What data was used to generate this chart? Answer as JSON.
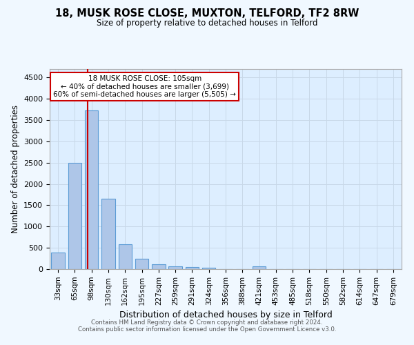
{
  "title": "18, MUSK ROSE CLOSE, MUXTON, TELFORD, TF2 8RW",
  "subtitle": "Size of property relative to detached houses in Telford",
  "xlabel": "Distribution of detached houses by size in Telford",
  "ylabel": "Number of detached properties",
  "categories": [
    "33sqm",
    "65sqm",
    "98sqm",
    "130sqm",
    "162sqm",
    "195sqm",
    "227sqm",
    "259sqm",
    "291sqm",
    "324sqm",
    "356sqm",
    "388sqm",
    "421sqm",
    "453sqm",
    "485sqm",
    "518sqm",
    "550sqm",
    "582sqm",
    "614sqm",
    "647sqm",
    "679sqm"
  ],
  "values": [
    390,
    2500,
    3720,
    1650,
    580,
    245,
    110,
    65,
    45,
    40,
    0,
    0,
    60,
    0,
    0,
    0,
    0,
    0,
    0,
    0,
    0
  ],
  "bar_color": "#aec6e8",
  "bar_edgecolor": "#5b9bd5",
  "redline_x": 2,
  "ylim": [
    0,
    4700
  ],
  "yticks": [
    0,
    500,
    1000,
    1500,
    2000,
    2500,
    3000,
    3500,
    4000,
    4500
  ],
  "annotation_title": "18 MUSK ROSE CLOSE: 105sqm",
  "annotation_line1": "← 40% of detached houses are smaller (3,699)",
  "annotation_line2": "60% of semi-detached houses are larger (5,505) →",
  "annotation_box_color": "#ffffff",
  "annotation_box_edgecolor": "#cc0000",
  "redline_color": "#cc0000",
  "plot_bg_color": "#ddeeff",
  "fig_bg_color": "#f0f8ff",
  "footer_line1": "Contains HM Land Registry data © Crown copyright and database right 2024.",
  "footer_line2": "Contains public sector information licensed under the Open Government Licence v3.0."
}
